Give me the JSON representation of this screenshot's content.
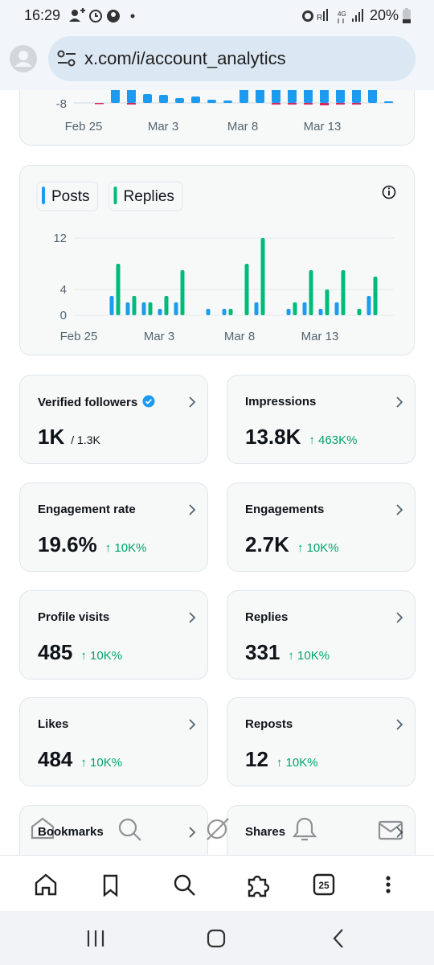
{
  "status_bar": {
    "time": "16:29",
    "battery": "20%"
  },
  "browser": {
    "url": "x.com/i/account_analytics",
    "tab_count": "25"
  },
  "top_chart": {
    "ytick_label": "-8",
    "xtick_labels": [
      "Feb 25",
      "Mar 3",
      "Mar 8",
      "Mar 13"
    ]
  },
  "chart_data": {
    "type": "bar",
    "categories": [
      "Feb 25",
      null,
      null,
      null,
      null,
      "Mar 3",
      null,
      null,
      null,
      null,
      "Mar 8",
      null,
      null,
      null,
      null,
      "Mar 13",
      null,
      null,
      null,
      null
    ],
    "series": [
      {
        "name": "Posts",
        "color": "#1d9bf0",
        "values": [
          0,
          0,
          3,
          2,
          2,
          1,
          2,
          0,
          1,
          1,
          0,
          2,
          0,
          1,
          2,
          1,
          2,
          0,
          3,
          0
        ]
      },
      {
        "name": "Replies",
        "color": "#00ba7c",
        "values": [
          0,
          0,
          8,
          3,
          2,
          3,
          7,
          0,
          0,
          1,
          8,
          12,
          0,
          2,
          7,
          4,
          7,
          1,
          6,
          0
        ]
      }
    ],
    "ylim": [
      0,
      12
    ],
    "yticks": [
      0,
      4,
      12
    ],
    "grid": true
  },
  "metrics": [
    {
      "label": "Verified followers",
      "verified": true,
      "value": "1K",
      "secondary": "/ 1.3K"
    },
    {
      "label": "Impressions",
      "value": "13.8K",
      "change": "↑ 463K%"
    },
    {
      "label": "Engagement rate",
      "value": "19.6%",
      "change": "↑ 10K%"
    },
    {
      "label": "Engagements",
      "value": "2.7K",
      "change": "↑ 10K%"
    },
    {
      "label": "Profile visits",
      "value": "485",
      "change": "↑ 10K%"
    },
    {
      "label": "Replies",
      "value": "331",
      "change": "↑ 10K%"
    },
    {
      "label": "Likes",
      "value": "484",
      "change": "↑ 10K%"
    },
    {
      "label": "Reposts",
      "value": "12",
      "change": "↑ 10K%"
    },
    {
      "label": "Bookmarks"
    },
    {
      "label": "Shares"
    }
  ]
}
